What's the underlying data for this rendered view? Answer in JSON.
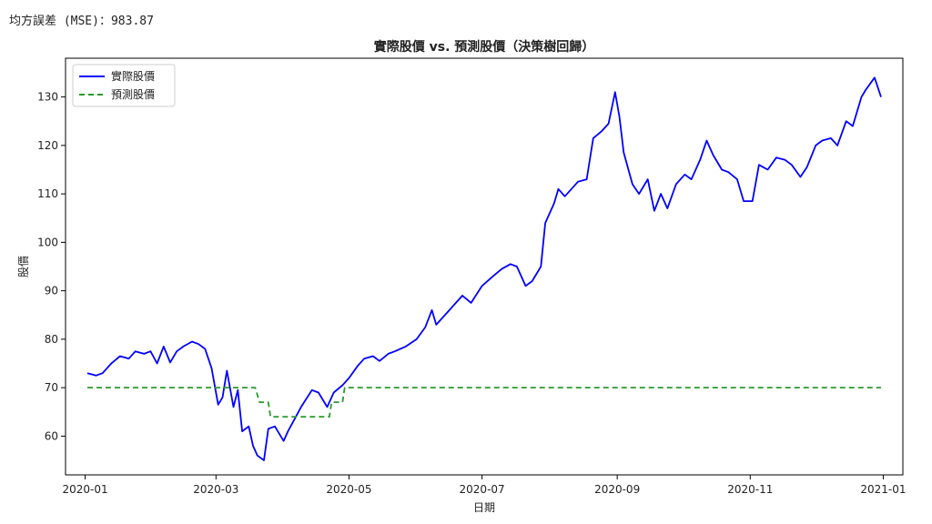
{
  "mse_text": "均方誤差 (MSE)：983.87",
  "chart_data": {
    "type": "line",
    "title": "實際股價 vs. 預測股價（決策樹回歸）",
    "xlabel": "日期",
    "ylabel": "股價",
    "xlim": [
      "2019-12-23",
      "2021-01-10"
    ],
    "ylim": [
      52,
      138
    ],
    "x_ticks": [
      "2020-01-01",
      "2020-03-01",
      "2020-05-01",
      "2020-07-01",
      "2020-09-01",
      "2020-11-01",
      "2021-01-01"
    ],
    "x_tick_labels": [
      "2020-01",
      "2020-03",
      "2020-05",
      "2020-07",
      "2020-09",
      "2020-11",
      "2021-01"
    ],
    "y_ticks": [
      60,
      70,
      80,
      90,
      100,
      110,
      120,
      130
    ],
    "grid": false,
    "legend_position": "top-left",
    "series": [
      {
        "name": "實際股價",
        "color": "#0000ff",
        "style": "solid",
        "points": [
          [
            "2020-01-02",
            73.0
          ],
          [
            "2020-01-06",
            72.5
          ],
          [
            "2020-01-09",
            73.0
          ],
          [
            "2020-01-13",
            75.0
          ],
          [
            "2020-01-17",
            76.5
          ],
          [
            "2020-01-21",
            76.0
          ],
          [
            "2020-01-24",
            77.5
          ],
          [
            "2020-01-28",
            77.0
          ],
          [
            "2020-01-31",
            77.5
          ],
          [
            "2020-02-03",
            75.0
          ],
          [
            "2020-02-06",
            78.5
          ],
          [
            "2020-02-09",
            75.2
          ],
          [
            "2020-02-12",
            77.5
          ],
          [
            "2020-02-15",
            78.5
          ],
          [
            "2020-02-19",
            79.5
          ],
          [
            "2020-02-22",
            79.0
          ],
          [
            "2020-02-25",
            78.0
          ],
          [
            "2020-02-28",
            74.0
          ],
          [
            "2020-03-02",
            66.5
          ],
          [
            "2020-03-04",
            68.0
          ],
          [
            "2020-03-06",
            73.5
          ],
          [
            "2020-03-09",
            66.0
          ],
          [
            "2020-03-11",
            69.5
          ],
          [
            "2020-03-13",
            61.0
          ],
          [
            "2020-03-16",
            62.0
          ],
          [
            "2020-03-18",
            58.0
          ],
          [
            "2020-03-20",
            56.0
          ],
          [
            "2020-03-23",
            55.0
          ],
          [
            "2020-03-25",
            61.5
          ],
          [
            "2020-03-28",
            62.0
          ],
          [
            "2020-04-01",
            59.0
          ],
          [
            "2020-04-03",
            61.0
          ],
          [
            "2020-04-06",
            63.5
          ],
          [
            "2020-04-09",
            66.0
          ],
          [
            "2020-04-14",
            69.5
          ],
          [
            "2020-04-17",
            69.0
          ],
          [
            "2020-04-21",
            66.0
          ],
          [
            "2020-04-24",
            69.0
          ],
          [
            "2020-04-28",
            70.5
          ],
          [
            "2020-05-01",
            72.0
          ],
          [
            "2020-05-05",
            74.5
          ],
          [
            "2020-05-08",
            76.0
          ],
          [
            "2020-05-12",
            76.5
          ],
          [
            "2020-05-15",
            75.5
          ],
          [
            "2020-05-19",
            77.0
          ],
          [
            "2020-05-22",
            77.5
          ],
          [
            "2020-05-27",
            78.5
          ],
          [
            "2020-06-01",
            80.0
          ],
          [
            "2020-06-05",
            82.5
          ],
          [
            "2020-06-08",
            86.0
          ],
          [
            "2020-06-10",
            83.0
          ],
          [
            "2020-06-15",
            85.5
          ],
          [
            "2020-06-19",
            87.5
          ],
          [
            "2020-06-22",
            89.0
          ],
          [
            "2020-06-26",
            87.5
          ],
          [
            "2020-07-01",
            91.0
          ],
          [
            "2020-07-06",
            93.0
          ],
          [
            "2020-07-10",
            94.5
          ],
          [
            "2020-07-14",
            95.5
          ],
          [
            "2020-07-17",
            95.0
          ],
          [
            "2020-07-21",
            91.0
          ],
          [
            "2020-07-24",
            92.0
          ],
          [
            "2020-07-28",
            95.0
          ],
          [
            "2020-07-30",
            104.0
          ],
          [
            "2020-08-03",
            108.0
          ],
          [
            "2020-08-05",
            111.0
          ],
          [
            "2020-08-08",
            109.5
          ],
          [
            "2020-08-11",
            111.0
          ],
          [
            "2020-08-14",
            112.5
          ],
          [
            "2020-08-18",
            113.0
          ],
          [
            "2020-08-21",
            121.5
          ],
          [
            "2020-08-25",
            123.0
          ],
          [
            "2020-08-28",
            124.5
          ],
          [
            "2020-08-31",
            131.0
          ],
          [
            "2020-09-02",
            126.0
          ],
          [
            "2020-09-04",
            118.5
          ],
          [
            "2020-09-08",
            112.0
          ],
          [
            "2020-09-11",
            110.0
          ],
          [
            "2020-09-15",
            113.0
          ],
          [
            "2020-09-18",
            106.5
          ],
          [
            "2020-09-21",
            110.0
          ],
          [
            "2020-09-24",
            107.0
          ],
          [
            "2020-09-28",
            112.0
          ],
          [
            "2020-10-02",
            114.0
          ],
          [
            "2020-10-05",
            113.0
          ],
          [
            "2020-10-09",
            117.0
          ],
          [
            "2020-10-12",
            121.0
          ],
          [
            "2020-10-15",
            118.0
          ],
          [
            "2020-10-19",
            115.0
          ],
          [
            "2020-10-22",
            114.5
          ],
          [
            "2020-10-26",
            113.0
          ],
          [
            "2020-10-29",
            108.5
          ],
          [
            "2020-11-02",
            108.5
          ],
          [
            "2020-11-05",
            116.0
          ],
          [
            "2020-11-09",
            115.0
          ],
          [
            "2020-11-13",
            117.5
          ],
          [
            "2020-11-17",
            117.0
          ],
          [
            "2020-11-20",
            116.0
          ],
          [
            "2020-11-24",
            113.5
          ],
          [
            "2020-11-27",
            115.5
          ],
          [
            "2020-12-01",
            120.0
          ],
          [
            "2020-12-04",
            121.0
          ],
          [
            "2020-12-08",
            121.5
          ],
          [
            "2020-12-11",
            120.0
          ],
          [
            "2020-12-15",
            125.0
          ],
          [
            "2020-12-18",
            124.0
          ],
          [
            "2020-12-22",
            130.0
          ],
          [
            "2020-12-24",
            131.5
          ],
          [
            "2020-12-28",
            134.0
          ],
          [
            "2020-12-31",
            130.0
          ]
        ]
      },
      {
        "name": "預測股價",
        "color": "#2a9a2a",
        "style": "dashed",
        "points": [
          [
            "2020-01-02",
            70.0
          ],
          [
            "2020-03-19",
            70.0
          ],
          [
            "2020-03-21",
            67.0
          ],
          [
            "2020-03-25",
            67.0
          ],
          [
            "2020-03-26",
            64.0
          ],
          [
            "2020-04-22",
            64.0
          ],
          [
            "2020-04-23",
            67.0
          ],
          [
            "2020-04-28",
            67.0
          ],
          [
            "2020-04-29",
            70.0
          ],
          [
            "2020-12-31",
            70.0
          ]
        ]
      }
    ]
  }
}
